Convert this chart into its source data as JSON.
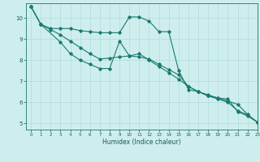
{
  "title": "",
  "xlabel": "Humidex (Indice chaleur)",
  "ylabel": "",
  "background_color": "#ceeeed",
  "line_color": "#1a7a6e",
  "xlim": [
    -0.5,
    23
  ],
  "ylim": [
    4.7,
    10.7
  ],
  "xticks": [
    0,
    1,
    2,
    3,
    4,
    5,
    6,
    7,
    8,
    9,
    10,
    11,
    12,
    13,
    14,
    15,
    16,
    17,
    18,
    19,
    20,
    21,
    22,
    23
  ],
  "yticks": [
    5,
    6,
    7,
    8,
    9,
    10
  ],
  "series": [
    {
      "x": [
        0,
        1,
        2,
        3,
        4,
        5,
        6,
        7,
        8,
        9,
        10,
        11,
        12,
        13,
        14,
        15,
        16,
        17,
        18,
        19,
        20,
        21,
        22,
        23
      ],
      "y": [
        10.55,
        9.7,
        9.5,
        9.5,
        9.5,
        9.4,
        9.35,
        9.3,
        9.3,
        9.3,
        10.05,
        10.05,
        9.85,
        9.35,
        9.35,
        7.5,
        6.6,
        6.5,
        6.3,
        6.2,
        6.15,
        5.55,
        5.35,
        5.05
      ]
    },
    {
      "x": [
        0,
        1,
        2,
        3,
        4,
        5,
        6,
        7,
        8,
        9,
        10,
        11,
        12,
        13,
        14,
        15,
        16,
        17,
        18,
        19,
        20,
        21,
        22,
        23
      ],
      "y": [
        10.55,
        9.7,
        9.45,
        9.2,
        8.9,
        8.6,
        8.3,
        8.05,
        8.1,
        8.15,
        8.2,
        8.3,
        8.0,
        7.7,
        7.4,
        7.1,
        6.75,
        6.5,
        6.3,
        6.15,
        6.0,
        5.6,
        5.4,
        5.05
      ]
    },
    {
      "x": [
        0,
        1,
        3,
        4,
        5,
        6,
        7,
        8,
        9,
        10,
        11,
        12,
        13,
        14,
        15,
        16,
        17,
        18,
        19,
        20,
        21,
        22,
        23
      ],
      "y": [
        10.55,
        9.7,
        8.85,
        8.3,
        8.0,
        7.8,
        7.6,
        7.6,
        8.9,
        8.2,
        8.15,
        8.05,
        7.8,
        7.55,
        7.3,
        6.75,
        6.5,
        6.35,
        6.2,
        6.05,
        5.9,
        5.42,
        5.05
      ]
    }
  ]
}
